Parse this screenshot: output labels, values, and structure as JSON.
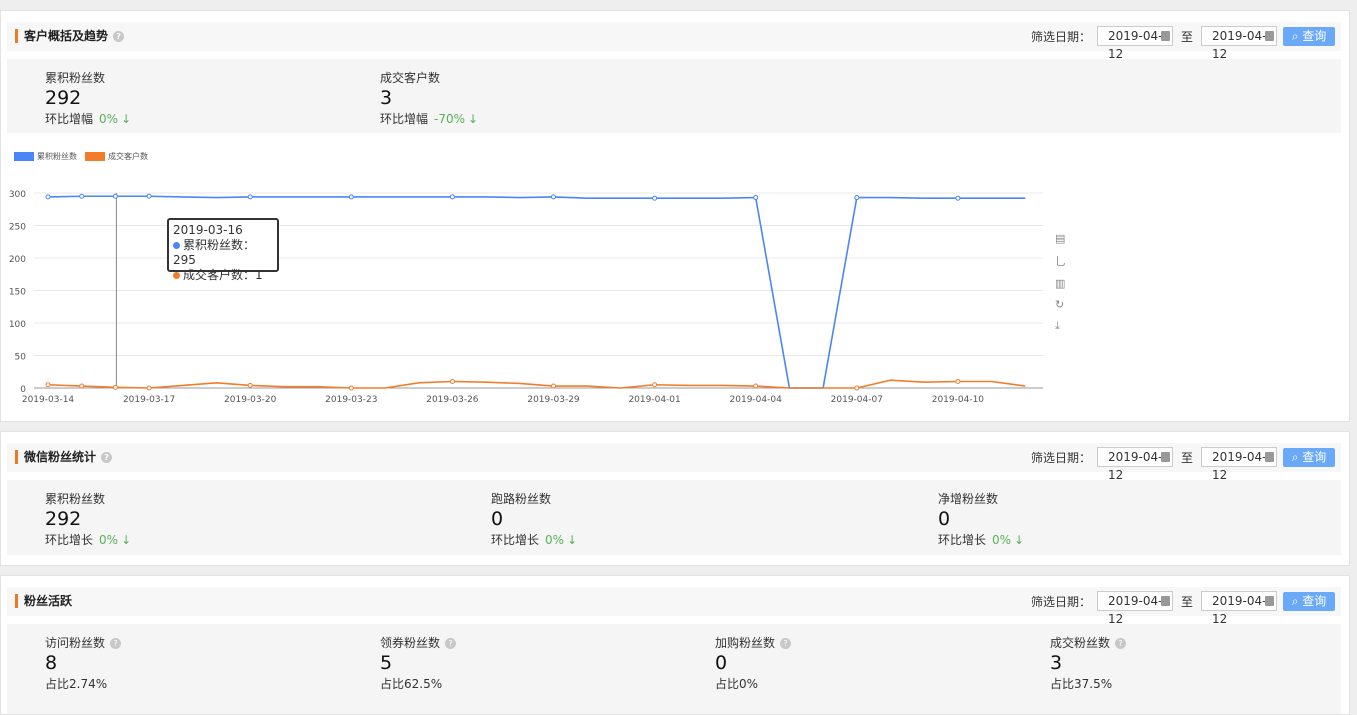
{
  "filter": {
    "label": "筛选日期：",
    "from": "2019-04-12",
    "to_label": "至",
    "to": "2019-04-12",
    "query": "查询"
  },
  "overview": {
    "title": "客户概括及趋势",
    "stats": [
      {
        "label": "累积粉丝数",
        "value": "292",
        "change_label": "环比增幅",
        "change": "0%"
      },
      {
        "label": "成交客户数",
        "value": "3",
        "change_label": "环比增幅",
        "change": "-70%"
      }
    ]
  },
  "tooltip": {
    "date": "2019-03-16",
    "line1": "累积粉丝数：295",
    "line2": "成交客户数：1"
  },
  "toolbox": [
    "data-view-icon",
    "line-icon",
    "bar-icon",
    "restore-icon",
    "download-icon"
  ],
  "chart_data": {
    "type": "line",
    "ylim": [
      0,
      300
    ],
    "yticks": [
      0,
      50,
      100,
      150,
      200,
      250,
      300
    ],
    "grid": true,
    "legend": "top-left",
    "xticks": [
      "2019-03-14",
      "2019-03-17",
      "2019-03-20",
      "2019-03-23",
      "2019-03-26",
      "2019-03-29",
      "2019-04-01",
      "2019-04-04",
      "2019-04-07",
      "2019-04-10"
    ],
    "x": [
      "2019-03-14",
      "2019-03-15",
      "2019-03-16",
      "2019-03-17",
      "2019-03-18",
      "2019-03-19",
      "2019-03-20",
      "2019-03-21",
      "2019-03-22",
      "2019-03-23",
      "2019-03-24",
      "2019-03-25",
      "2019-03-26",
      "2019-03-27",
      "2019-03-28",
      "2019-03-29",
      "2019-03-30",
      "2019-03-31",
      "2019-04-01",
      "2019-04-02",
      "2019-04-03",
      "2019-04-04",
      "2019-04-05",
      "2019-04-06",
      "2019-04-07",
      "2019-04-08",
      "2019-04-09",
      "2019-04-10",
      "2019-04-11",
      "2019-04-12"
    ],
    "series": [
      {
        "name": "累积粉丝数",
        "color": "#4a86f7",
        "values": [
          294,
          295,
          295,
          295,
          294,
          293,
          294,
          294,
          294,
          294,
          294,
          294,
          294,
          294,
          293,
          294,
          292,
          292,
          292,
          292,
          292,
          293,
          0,
          0,
          293,
          293,
          292,
          292,
          292,
          292
        ]
      },
      {
        "name": "成交客户数",
        "color": "#f27c2a",
        "values": [
          5,
          3,
          1,
          0,
          4,
          8,
          4,
          2,
          2,
          0,
          0,
          8,
          10,
          9,
          7,
          3,
          3,
          0,
          5,
          4,
          4,
          3,
          0,
          0,
          0,
          12,
          9,
          10,
          10,
          3
        ]
      }
    ]
  },
  "wechat": {
    "title": "微信粉丝统计",
    "stats": [
      {
        "label": "累积粉丝数",
        "value": "292",
        "change_label": "环比增长",
        "change": "0%"
      },
      {
        "label": "跑路粉丝数",
        "value": "0",
        "change_label": "环比增长",
        "change": "0%"
      },
      {
        "label": "净增粉丝数",
        "value": "0",
        "change_label": "环比增长",
        "change": "0%"
      }
    ]
  },
  "active": {
    "title": "粉丝活跃",
    "stats": [
      {
        "label": "访问粉丝数",
        "value": "8",
        "ratio": "占比2.74%"
      },
      {
        "label": "领券粉丝数",
        "value": "5",
        "ratio": "占比62.5%"
      },
      {
        "label": "加购粉丝数",
        "value": "0",
        "ratio": "占比0%"
      },
      {
        "label": "成交粉丝数",
        "value": "3",
        "ratio": "占比37.5%"
      }
    ]
  }
}
